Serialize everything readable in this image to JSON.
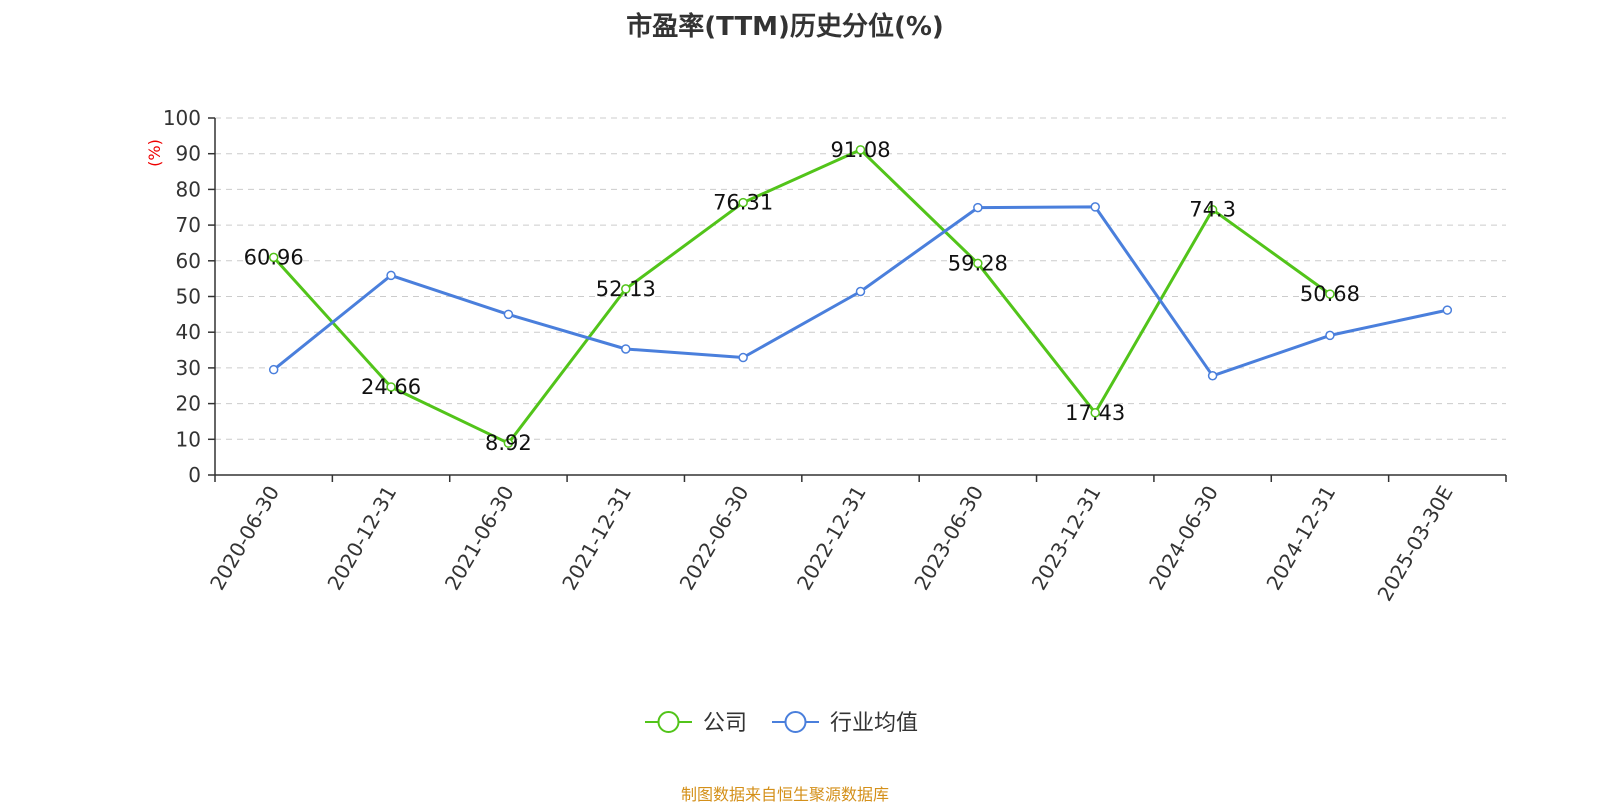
{
  "title": "市盈率(TTM)历史分位(%)",
  "source_note": "制图数据来自恒生聚源数据库",
  "chart_data": {
    "type": "line",
    "title": "市盈率(TTM)历史分位(%)",
    "ylabel": "(%)",
    "ylim": [
      0,
      100
    ],
    "yticks": [
      0,
      10,
      20,
      30,
      40,
      50,
      60,
      70,
      80,
      90,
      100
    ],
    "grid": true,
    "legend_position": "bottom-center",
    "categories": [
      "2020-06-30",
      "2020-12-31",
      "2021-06-30",
      "2021-12-31",
      "2022-06-30",
      "2022-12-31",
      "2023-06-30",
      "2023-12-31",
      "2024-06-30",
      "2024-12-31",
      "2025-03-30E"
    ],
    "series": [
      {
        "name": "公司",
        "color": "#52c41a",
        "show_labels": true,
        "values": [
          60.96,
          24.66,
          8.92,
          52.13,
          76.31,
          91.08,
          59.28,
          17.43,
          74.3,
          50.68,
          null
        ],
        "labels": [
          "60.96",
          "24.66",
          "8.92",
          "52.13",
          "76.31",
          "91.08",
          "59.28",
          "17.43",
          "74.3",
          "50.68",
          ""
        ]
      },
      {
        "name": "行业均值",
        "color": "#4a7fdc",
        "show_labels": false,
        "values": [
          29.5,
          55.9,
          45.0,
          35.3,
          32.9,
          51.4,
          74.9,
          75.1,
          27.8,
          39.1,
          46.2
        ]
      }
    ]
  }
}
